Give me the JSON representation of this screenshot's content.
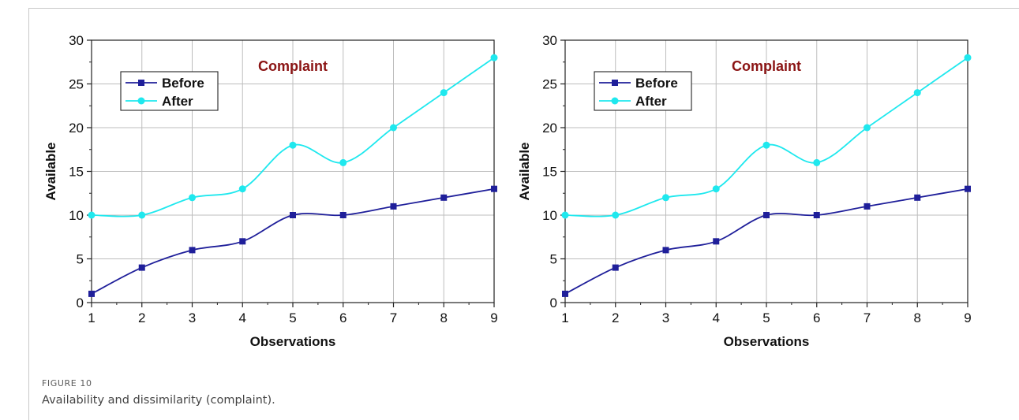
{
  "figure": {
    "label": "FIGURE 10",
    "caption": "Availability and dissimilarity (complaint)."
  },
  "colors": {
    "before": "#1f1f9a",
    "after": "#1fe8ee",
    "title": "#8b1414",
    "grid": "#bdbdbd"
  },
  "chart_data": [
    {
      "type": "line",
      "title": "Complaint",
      "xlabel": "Observations",
      "ylabel": "Available",
      "x": [
        1,
        2,
        3,
        4,
        5,
        6,
        7,
        8,
        9
      ],
      "xlim": [
        1,
        9
      ],
      "ylim": [
        0,
        30
      ],
      "yticks": [
        0,
        5,
        10,
        15,
        20,
        25,
        30
      ],
      "xticks": [
        1,
        2,
        3,
        4,
        5,
        6,
        7,
        8,
        9
      ],
      "grid": true,
      "legend": "top-left",
      "series": [
        {
          "name": "Before",
          "marker": "square",
          "values": [
            1,
            4,
            6,
            7,
            10,
            10,
            11,
            12,
            13
          ]
        },
        {
          "name": "After",
          "marker": "circle",
          "values": [
            10,
            10,
            12,
            13,
            18,
            16,
            20,
            24,
            28
          ]
        }
      ]
    },
    {
      "type": "line",
      "title": "Complaint",
      "xlabel": "Observations",
      "ylabel": "Available",
      "x": [
        1,
        2,
        3,
        4,
        5,
        6,
        7,
        8,
        9
      ],
      "xlim": [
        1,
        9
      ],
      "ylim": [
        0,
        30
      ],
      "yticks": [
        0,
        5,
        10,
        15,
        20,
        25,
        30
      ],
      "xticks": [
        1,
        2,
        3,
        4,
        5,
        6,
        7,
        8,
        9
      ],
      "grid": true,
      "legend": "top-left",
      "series": [
        {
          "name": "Before",
          "marker": "square",
          "values": [
            1,
            4,
            6,
            7,
            10,
            10,
            11,
            12,
            13
          ]
        },
        {
          "name": "After",
          "marker": "circle",
          "values": [
            10,
            10,
            12,
            13,
            18,
            16,
            20,
            24,
            28
          ]
        }
      ]
    }
  ]
}
